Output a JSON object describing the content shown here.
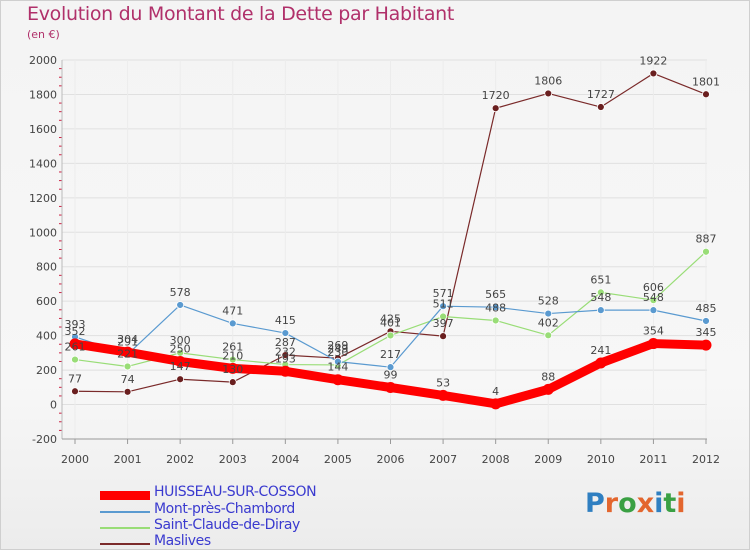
{
  "header": {
    "title": "Evolution du Montant de la Dette par Habitant",
    "subtitle": "(en €)"
  },
  "logo": {
    "text": "Proxiti",
    "letters": [
      "P",
      "r",
      "o",
      "x",
      "i",
      "t",
      "i"
    ],
    "colors": [
      "#2f7fc1",
      "#e3662e",
      "#3aa043",
      "#e3662e",
      "#2f7fc1",
      "#3aa043",
      "#e3662e"
    ]
  },
  "colors": {
    "title": "#b0306a",
    "axis_text": "#444444",
    "legend_text": "#3a3acf",
    "tick_marks": "#cc2244"
  },
  "chart_data": {
    "type": "line",
    "title": "Evolution du Montant de la Dette par Habitant",
    "subtitle": "(en €)",
    "x": [
      "2000",
      "2001",
      "2002",
      "2003",
      "2004",
      "2005",
      "2006",
      "2007",
      "2008",
      "2009",
      "2010",
      "2011",
      "2012"
    ],
    "ylim": [
      -200,
      2000
    ],
    "yticks": [
      "-200",
      "0",
      "200",
      "400",
      "600",
      "800",
      "1000",
      "1200",
      "1400",
      "1600",
      "1800",
      "2000"
    ],
    "grid": true,
    "legend_position": "bottom-left",
    "series": [
      {
        "name": "HUISSEAU-SUR-COSSON",
        "color": "#ff0000",
        "width": 9,
        "values": [
          352,
          304,
          250,
          210,
          193,
          144,
          99,
          53,
          4,
          88,
          241,
          354,
          345
        ],
        "labels": [
          "352",
          "304",
          "250",
          "210",
          "193",
          "144",
          "99",
          "53",
          "4",
          "88",
          "241",
          "354",
          "345"
        ]
      },
      {
        "name": "Mont-près-Chambord",
        "color": "#5a9ad0",
        "width": 1.2,
        "values": [
          393,
          291,
          578,
          471,
          415,
          249,
          217,
          571,
          565,
          528,
          548,
          548,
          485
        ],
        "labels": [
          "393",
          "291",
          "578",
          "471",
          "415",
          "249",
          "217",
          "571",
          "565",
          "528",
          "548",
          "548",
          "485"
        ]
      },
      {
        "name": "Saint-Claude-de-Diray",
        "color": "#99dd77",
        "width": 1.2,
        "values": [
          261,
          221,
          300,
          261,
          232,
          230,
          401,
          511,
          488,
          402,
          651,
          606,
          887
        ],
        "labels": [
          "261",
          "221",
          "300",
          "261",
          "232",
          "230",
          "401",
          "511",
          "488",
          "402",
          "651",
          "606",
          "887"
        ]
      },
      {
        "name": "Maslives",
        "color": "#7a2a2a",
        "width": 1.2,
        "values": [
          77,
          74,
          147,
          130,
          287,
          269,
          425,
          397,
          1720,
          1806,
          1727,
          1922,
          1801
        ],
        "labels": [
          "77",
          "74",
          "147",
          "130",
          "287",
          "269",
          "425",
          "397",
          "1720",
          "1806",
          "1727",
          "1922",
          "1801"
        ]
      }
    ]
  }
}
